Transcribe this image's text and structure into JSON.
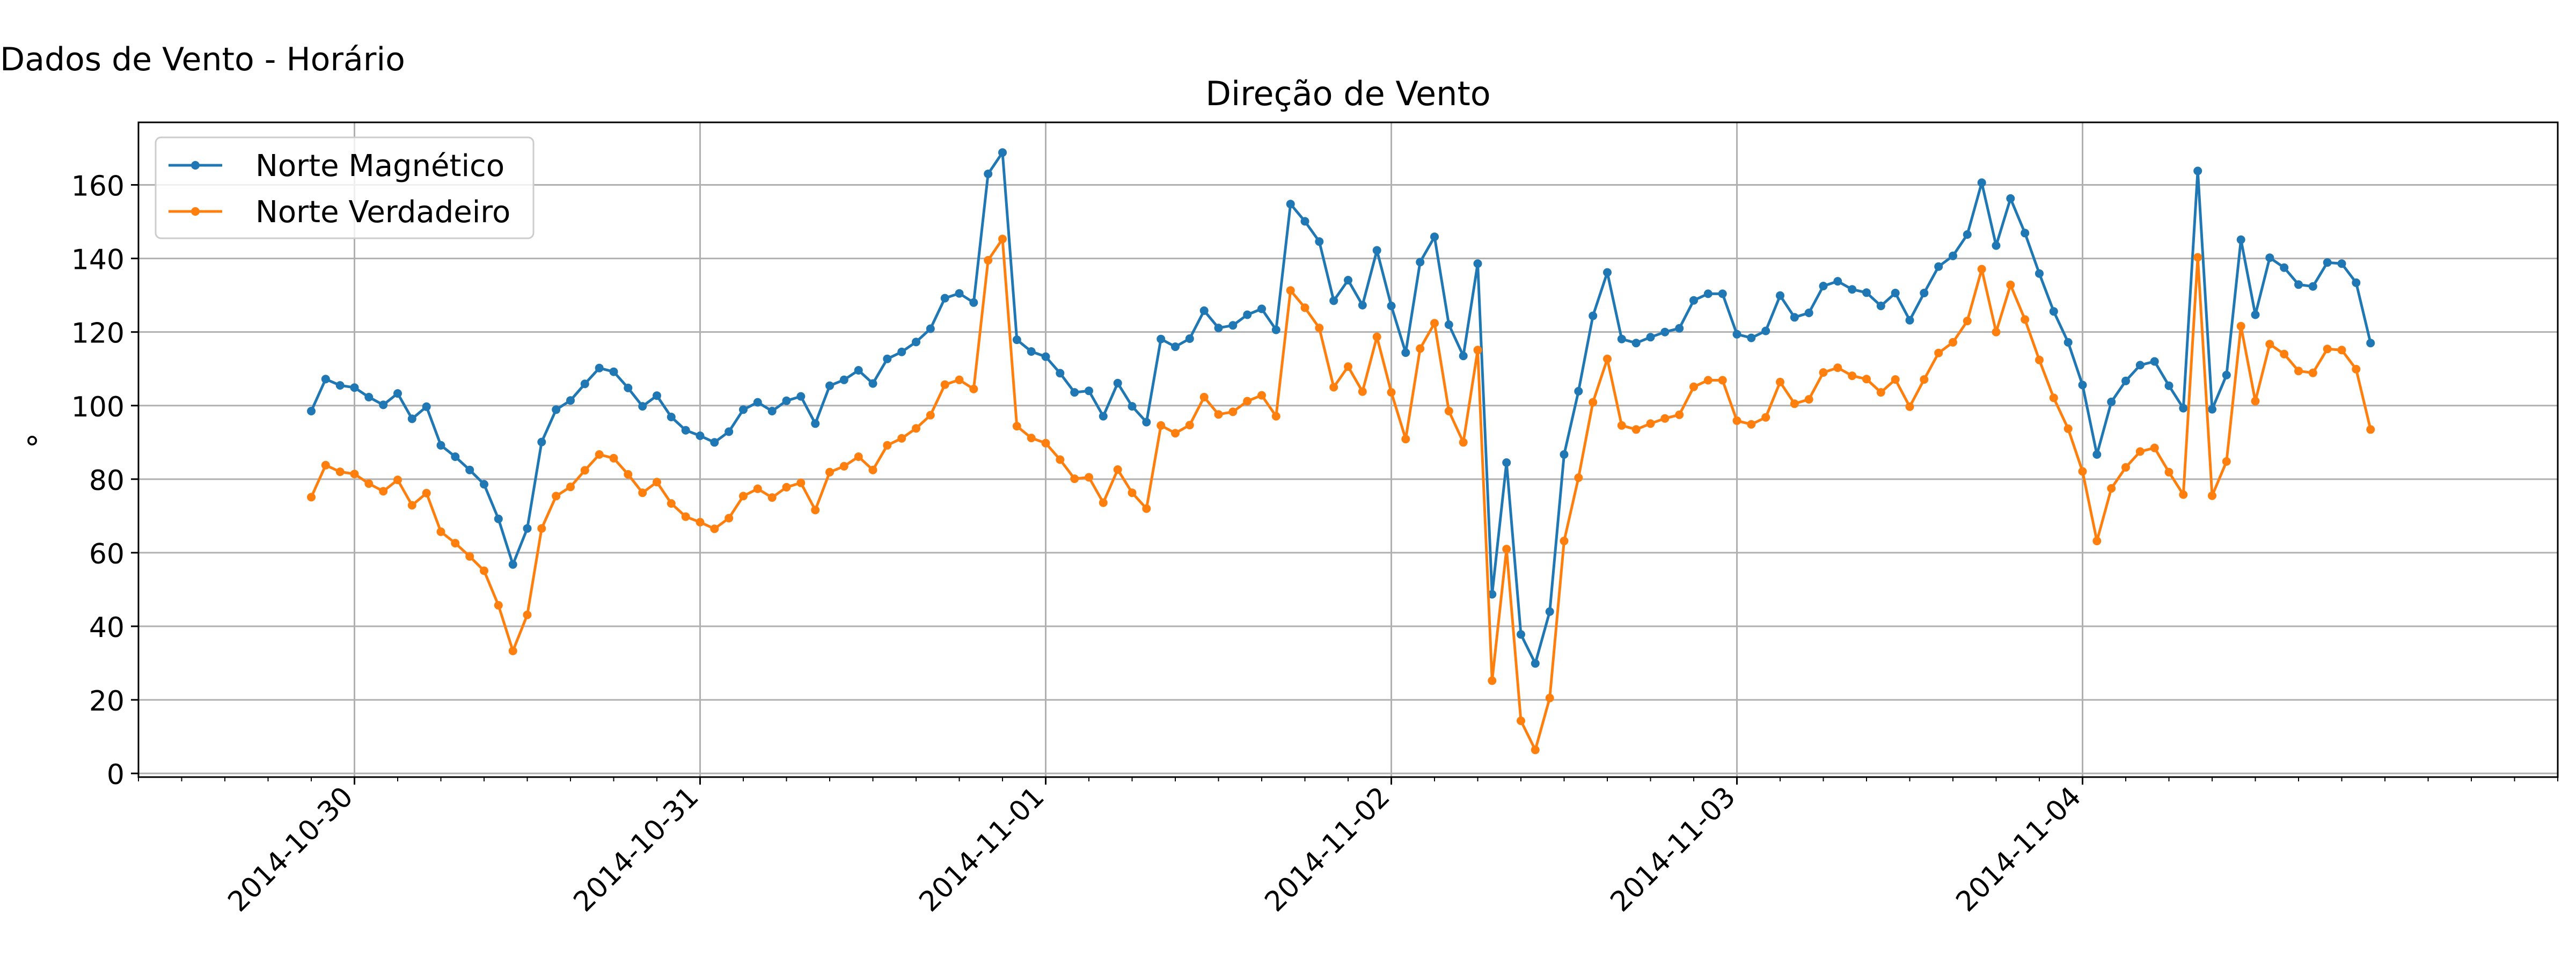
{
  "figure": {
    "suptitle": "Dados de Vento - Horário"
  },
  "chart_data": {
    "type": "line",
    "title": "Direção de Vento",
    "xlabel": "",
    "ylabel": "°",
    "ylim": [
      -1,
      177
    ],
    "yticks": [
      0,
      20,
      40,
      60,
      80,
      100,
      120,
      140,
      160
    ],
    "xlim": [
      "2014-10-29 09:00",
      "2014-11-05 09:00"
    ],
    "xticks": [
      "2014-10-30",
      "2014-10-31",
      "2014-11-01",
      "2014-11-02",
      "2014-11-03",
      "2014-11-04"
    ],
    "grid": true,
    "legend": "upper-left",
    "x_start": "2014-10-29 21:00",
    "x_step_hours": 1,
    "series": [
      {
        "name": "Norte Magnético",
        "color": "#1f77b4",
        "values": [
          98.5,
          107.2,
          105.5,
          104.9,
          102.3,
          100.2,
          103.3,
          96.4,
          99.7,
          89.2,
          86.1,
          82.5,
          78.6,
          69.2,
          56.8,
          66.6,
          90.1,
          98.9,
          101.4,
          105.9,
          110.2,
          109.2,
          104.8,
          99.8,
          102.7,
          96.9,
          93.3,
          91.8,
          90.0,
          92.9,
          98.9,
          100.9,
          98.5,
          101.3,
          102.5,
          95.1,
          105.4,
          107.0,
          109.6,
          106.0,
          112.7,
          114.6,
          117.3,
          120.9,
          129.2,
          130.5,
          128.0,
          163.0,
          168.8,
          117.9,
          114.7,
          113.3,
          108.8,
          103.6,
          104.0,
          97.1,
          106.1,
          99.8,
          95.5,
          118.1,
          116.0,
          118.2,
          125.8,
          121.1,
          121.8,
          124.7,
          126.3,
          120.6,
          154.8,
          150.1,
          144.6,
          128.5,
          134.1,
          127.3,
          142.2,
          127.1,
          114.4,
          139.0,
          145.9,
          122.0,
          113.5,
          138.6,
          48.7,
          84.5,
          37.8,
          29.9,
          44.0,
          86.7,
          103.9,
          124.4,
          136.2,
          118.1,
          117.0,
          118.6,
          120.0,
          121.0,
          128.6,
          130.4,
          130.4,
          119.4,
          118.4,
          120.3,
          129.9,
          124.0,
          125.2,
          132.5,
          133.8,
          131.6,
          130.7,
          127.1,
          130.6,
          123.2,
          130.6,
          137.8,
          140.7,
          146.5,
          160.6,
          143.5,
          156.3,
          146.9,
          135.9,
          125.6,
          117.2,
          105.6,
          86.7,
          101.0,
          106.7,
          111.0,
          112.0,
          105.4,
          99.3,
          163.8,
          99.0,
          108.3,
          145.1,
          124.7,
          140.2,
          137.5,
          132.9,
          132.4,
          138.9,
          138.6,
          133.4,
          117.0
        ]
      },
      {
        "name": "Norte Verdadeiro",
        "color": "#ff7f0e",
        "values": [
          75.1,
          83.8,
          82.0,
          81.4,
          78.8,
          76.7,
          79.8,
          72.9,
          76.2,
          65.7,
          62.6,
          59.0,
          55.1,
          45.7,
          33.3,
          43.1,
          66.6,
          75.4,
          77.9,
          82.4,
          86.7,
          85.7,
          81.3,
          76.3,
          79.2,
          73.4,
          69.8,
          68.3,
          66.5,
          69.4,
          75.4,
          77.4,
          75.0,
          77.8,
          79.0,
          71.6,
          81.9,
          83.5,
          86.1,
          82.5,
          89.2,
          91.1,
          93.8,
          97.4,
          105.7,
          107.0,
          104.5,
          139.5,
          145.3,
          94.4,
          91.2,
          89.8,
          85.3,
          80.1,
          80.5,
          73.6,
          82.6,
          76.3,
          72.0,
          94.6,
          92.5,
          94.7,
          102.3,
          97.6,
          98.3,
          101.2,
          102.8,
          97.1,
          131.3,
          126.6,
          121.1,
          105.0,
          110.6,
          103.8,
          118.7,
          103.6,
          90.9,
          115.5,
          122.4,
          98.5,
          90.0,
          115.1,
          25.2,
          61.0,
          14.3,
          6.4,
          20.5,
          63.2,
          80.4,
          100.9,
          112.7,
          94.6,
          93.5,
          95.1,
          96.5,
          97.5,
          105.1,
          106.9,
          106.9,
          95.9,
          94.9,
          96.8,
          106.4,
          100.5,
          101.7,
          109.0,
          110.3,
          108.1,
          107.2,
          103.6,
          107.1,
          99.7,
          107.1,
          114.3,
          117.2,
          123.0,
          137.1,
          120.0,
          132.8,
          123.4,
          112.4,
          102.1,
          93.7,
          82.1,
          63.2,
          77.5,
          83.2,
          87.5,
          88.5,
          81.9,
          75.8,
          140.3,
          75.5,
          84.8,
          121.6,
          101.2,
          116.7,
          114.0,
          109.4,
          108.9,
          115.4,
          115.1,
          109.9,
          93.5
        ]
      }
    ]
  }
}
